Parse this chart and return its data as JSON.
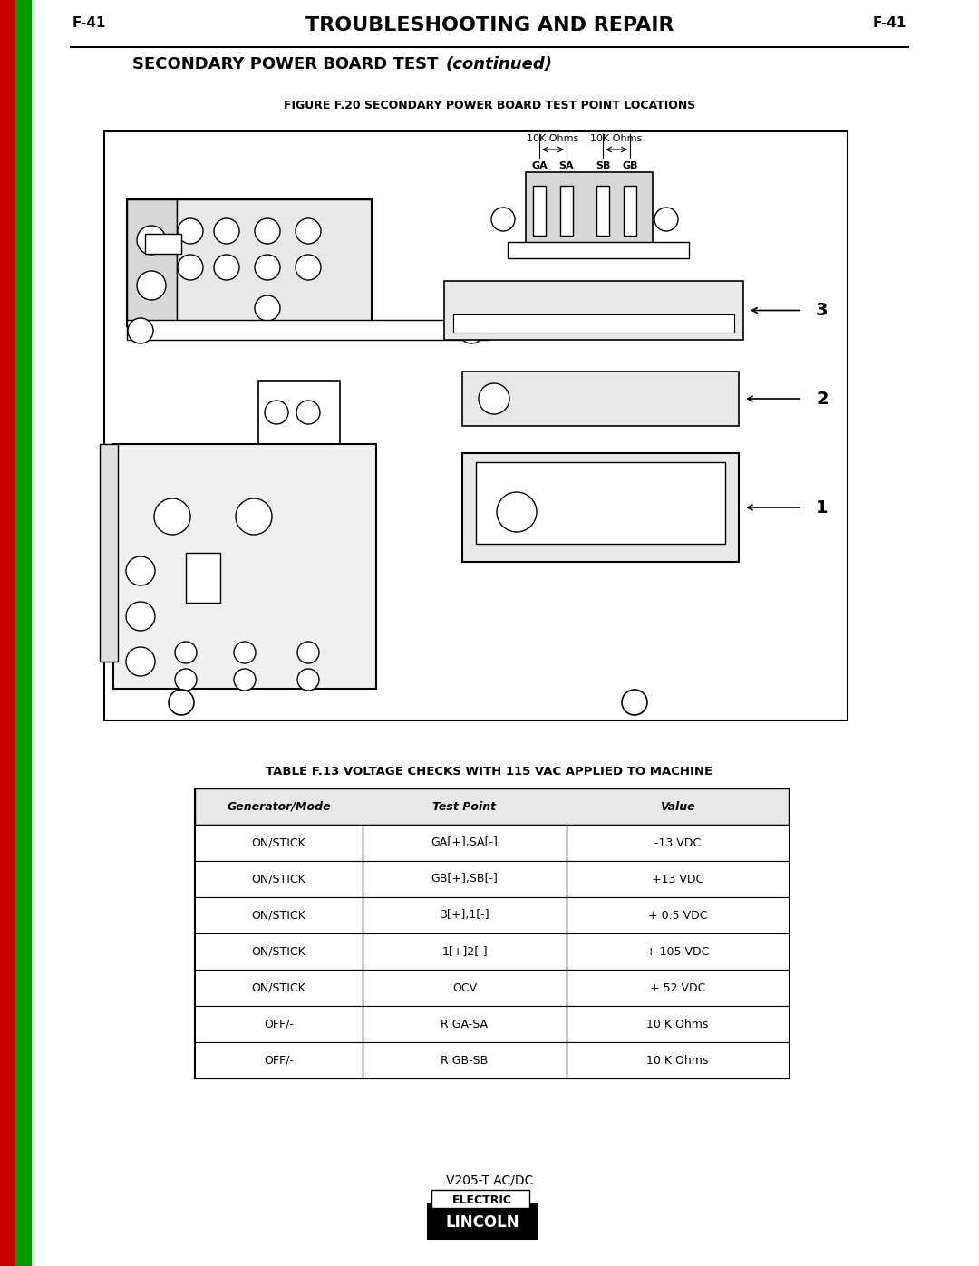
{
  "page_label_left": "F-41",
  "page_label_right": "F-41",
  "title": "TROUBLESHOOTING AND REPAIR",
  "subtitle": "SECONDARY POWER BOARD TEST",
  "subtitle_italic": "(continued)",
  "figure_title": "FIGURE F.20 SECONDARY POWER BOARD TEST POINT LOCATIONS",
  "table_title": "TABLE F.13 VOLTAGE CHECKS WITH 115 VAC APPLIED TO MACHINE",
  "table_headers": [
    "Generator/Mode",
    "Test Point",
    "Value"
  ],
  "table_rows": [
    [
      "ON/STICK",
      "GA[+],SA[-]",
      "-13 VDC"
    ],
    [
      "ON/STICK",
      "GB[+],SB[-]",
      "+13 VDC"
    ],
    [
      "ON/STICK",
      "3[+],1[-]",
      "+ 0.5 VDC"
    ],
    [
      "ON/STICK",
      "1[+]2[-]",
      "+ 105 VDC"
    ],
    [
      "ON/STICK",
      "OCV",
      "+ 52 VDC"
    ],
    [
      "OFF/-",
      "R GA-SA",
      "10 K Ohms"
    ],
    [
      "OFF/-",
      "R GB-SB",
      "10 K Ohms"
    ]
  ],
  "footer_model": "V205-T AC/DC",
  "bg_color": "#ffffff",
  "sidebar_red_color": "#cc0000",
  "sidebar_green_color": "#009900"
}
